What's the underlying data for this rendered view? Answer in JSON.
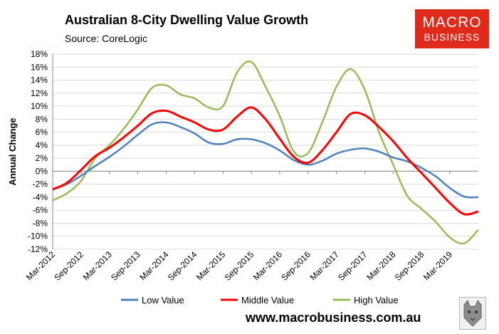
{
  "header": {
    "title": "Australian 8-City Dwelling Value Growth",
    "source": "Source: CoreLogic"
  },
  "logo": {
    "line1": "MACRO",
    "line2": "BUSINESS"
  },
  "footer": {
    "website": "www.macrobusiness.com.au"
  },
  "colors": {
    "low": "#4f81bd",
    "middle": "#ff0000",
    "high": "#9bbb59"
  },
  "chart_data": {
    "type": "line",
    "title": "Australian 8-City Dwelling Value Growth",
    "xlabel": "",
    "ylabel": "Annual Change",
    "ylim": [
      -12,
      18
    ],
    "yticks": [
      "18%",
      "16%",
      "14%",
      "12%",
      "10%",
      "8%",
      "6%",
      "4%",
      "2%",
      "0%",
      "-2%",
      "-4%",
      "-6%",
      "-8%",
      "-10%",
      "-12%"
    ],
    "xticks": [
      "Mar-2012",
      "Sep-2012",
      "Mar-2013",
      "Sep-2013",
      "Mar-2014",
      "Sep-2014",
      "Mar-2015",
      "Sep-2015",
      "Mar-2016",
      "Sep-2016",
      "Mar-2017",
      "Sep-2017",
      "Mar-2018",
      "Sep-2018",
      "Mar-2019"
    ],
    "x": [
      "Mar-2012",
      "Jun-2012",
      "Sep-2012",
      "Dec-2012",
      "Mar-2013",
      "Jun-2013",
      "Sep-2013",
      "Dec-2013",
      "Mar-2014",
      "Jun-2014",
      "Sep-2014",
      "Dec-2014",
      "Mar-2015",
      "Jun-2015",
      "Sep-2015",
      "Dec-2015",
      "Mar-2016",
      "Jun-2016",
      "Sep-2016",
      "Dec-2016",
      "Mar-2017",
      "Jun-2017",
      "Sep-2017",
      "Dec-2017",
      "Mar-2018",
      "Jun-2018",
      "Sep-2018",
      "Dec-2018",
      "Mar-2019",
      "Jun-2019",
      "Sep-2019"
    ],
    "series": [
      {
        "name": "Low Value",
        "key": "low",
        "values": [
          -2.8,
          -2.0,
          -0.7,
          0.8,
          2.2,
          3.8,
          5.6,
          7.2,
          7.5,
          6.8,
          5.8,
          4.4,
          4.2,
          4.9,
          4.9,
          4.3,
          3.2,
          1.7,
          1.0,
          1.6,
          2.7,
          3.3,
          3.5,
          3.0,
          2.1,
          1.5,
          0.5,
          -0.8,
          -2.6,
          -3.9,
          -4.0
        ]
      },
      {
        "name": "Middle Value",
        "key": "middle",
        "values": [
          -2.8,
          -1.8,
          0.2,
          2.3,
          3.6,
          5.2,
          7.0,
          8.9,
          9.3,
          8.4,
          7.5,
          6.4,
          6.4,
          8.4,
          9.8,
          8.0,
          5.0,
          2.2,
          1.3,
          3.2,
          6.0,
          8.8,
          8.6,
          6.8,
          4.6,
          2.0,
          -0.3,
          -2.6,
          -4.9,
          -6.6,
          -6.2
        ]
      },
      {
        "name": "High Value",
        "key": "high",
        "values": [
          -4.5,
          -3.4,
          -1.5,
          2.0,
          4.0,
          6.5,
          9.5,
          12.8,
          13.2,
          11.8,
          11.2,
          9.8,
          10.0,
          15.2,
          16.8,
          13.0,
          8.5,
          3.0,
          2.8,
          7.5,
          13.0,
          15.7,
          12.5,
          6.0,
          1.0,
          -3.8,
          -5.8,
          -7.8,
          -10.2,
          -11.1,
          -9.0
        ]
      }
    ],
    "legend": "bottom"
  }
}
